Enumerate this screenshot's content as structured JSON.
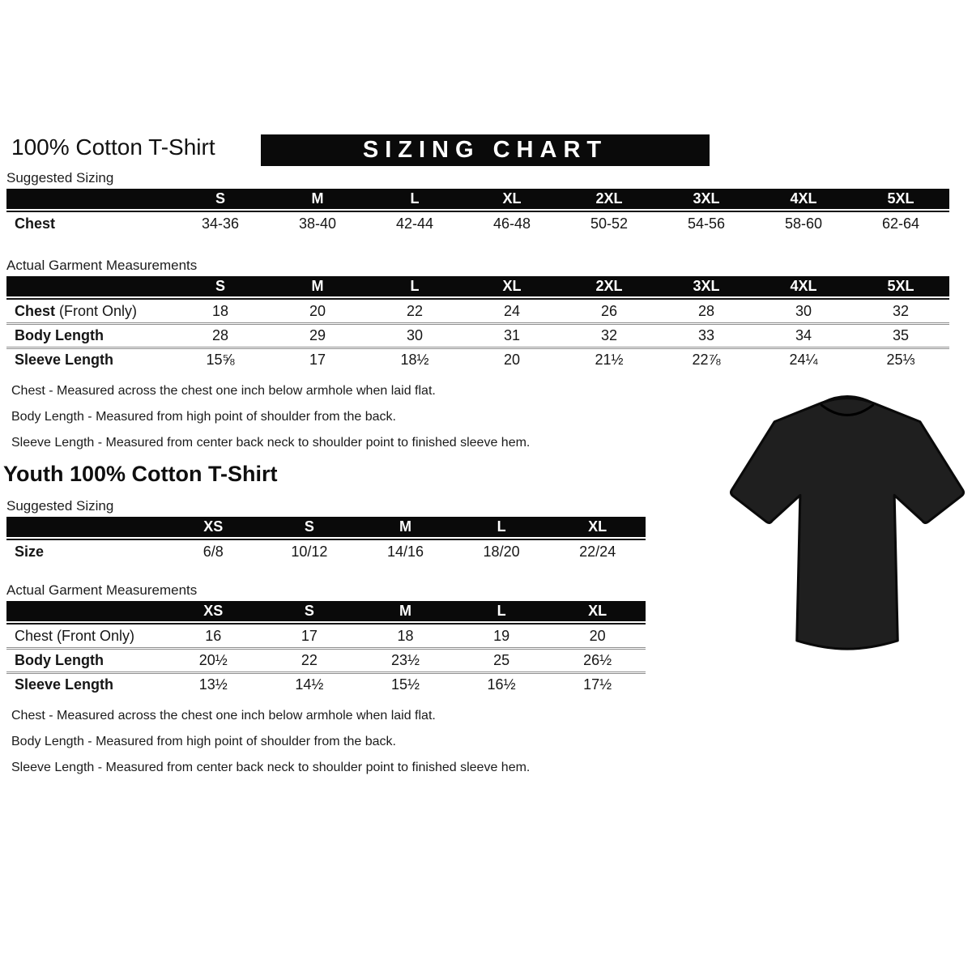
{
  "header": {
    "title": "100% Cotton T-Shirt",
    "banner": "SIZING CHART"
  },
  "sections": {
    "adult": {
      "suggested_label": "Suggested Sizing",
      "actual_label": "Actual Garment Measurements",
      "notes": [
        "Chest - Measured across the chest one inch below armhole when laid flat.",
        "Body Length - Measured from high point of shoulder from the back.",
        "Sleeve Length - Measured from center back neck to shoulder point to finished sleeve hem."
      ]
    },
    "youth": {
      "title": "Youth 100% Cotton T-Shirt",
      "suggested_label": "Suggested Sizing",
      "actual_label": "Actual Garment Measurements",
      "notes": [
        "Chest - Measured across the chest one inch below armhole when laid flat.",
        "Body Length - Measured from high point of shoulder from the back.",
        "Sleeve Length - Measured from center back neck to shoulder point to finished sleeve hem."
      ]
    }
  },
  "tables": {
    "adult_suggested": {
      "columns": [
        "S",
        "M",
        "L",
        "XL",
        "2XL",
        "3XL",
        "4XL",
        "5XL"
      ],
      "rows": [
        {
          "label": "Chest",
          "values": [
            "34-36",
            "38-40",
            "42-44",
            "46-48",
            "50-52",
            "54-56",
            "58-60",
            "62-64"
          ]
        }
      ]
    },
    "adult_actual": {
      "columns": [
        "S",
        "M",
        "L",
        "XL",
        "2XL",
        "3XL",
        "4XL",
        "5XL"
      ],
      "rows": [
        {
          "label": "Chest",
          "suffix": " (Front Only)",
          "values": [
            "18",
            "20",
            "22",
            "24",
            "26",
            "28",
            "30",
            "32"
          ]
        },
        {
          "label": "Body Length",
          "values": [
            "28",
            "29",
            "30",
            "31",
            "32",
            "33",
            "34",
            "35"
          ]
        },
        {
          "label": "Sleeve Length",
          "values": [
            "15⅝",
            "17",
            "18½",
            "20",
            "21½",
            "22⅞",
            "24¼",
            "25⅓"
          ]
        }
      ]
    },
    "youth_suggested": {
      "columns": [
        "XS",
        "S",
        "M",
        "L",
        "XL"
      ],
      "rows": [
        {
          "label": "Size",
          "values": [
            "6/8",
            "10/12",
            "14/16",
            "18/20",
            "22/24"
          ]
        }
      ]
    },
    "youth_actual": {
      "columns": [
        "XS",
        "S",
        "M",
        "L",
        "XL"
      ],
      "rows": [
        {
          "label": "Chest",
          "suffix": " (Front Only)",
          "label_bold": false,
          "values": [
            "16",
            "17",
            "18",
            "19",
            "20"
          ]
        },
        {
          "label": "Body Length",
          "values": [
            "20½",
            "22",
            "23½",
            "25",
            "26½"
          ]
        },
        {
          "label": "Sleeve Length",
          "values": [
            "13½",
            "14½",
            "15½",
            "16½",
            "17½"
          ]
        }
      ]
    }
  },
  "colors": {
    "banner_bg": "#0a0a0a",
    "banner_text": "#ffffff",
    "table_header_bg": "#0a0a0a",
    "tshirt": "#1f1f1f",
    "tshirt_collar": "#111111"
  },
  "tshirt": {
    "name": "black-short-sleeve-tshirt",
    "color": "#1f1f1f"
  }
}
